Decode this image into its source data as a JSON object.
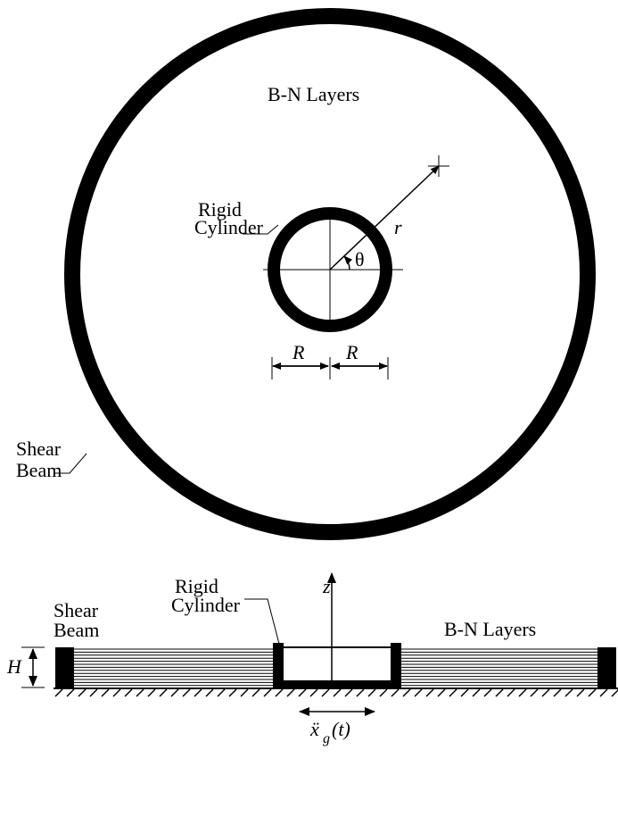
{
  "plan_view": {
    "layers_label": "B-N Layers",
    "cylinder_label": [
      "Rigid",
      "Cylinder"
    ],
    "radius_symbol": "r",
    "angle_symbol": "θ",
    "cylinder_radius_left": "R",
    "cylinder_radius_right": "R",
    "shear_beam_label": [
      "Shear",
      "Beam"
    ]
  },
  "section_view": {
    "axis_label": "z",
    "shear_beam_label": [
      "Shear",
      "Beam"
    ],
    "cylinder_label": [
      "Rigid",
      "Cylinder"
    ],
    "layers_label": "B-N Layers",
    "height_symbol": "H",
    "base_motion": {
      "symbol": "ẍ",
      "subscript": "g",
      "argument": "(t)"
    }
  }
}
